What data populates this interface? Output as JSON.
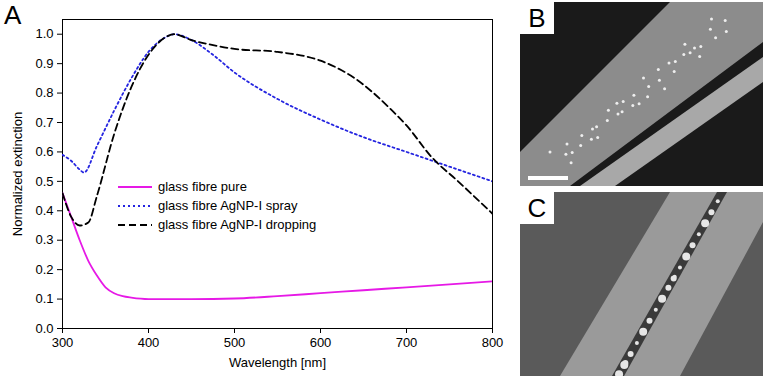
{
  "chart_data": {
    "type": "line",
    "panel_label": "A",
    "x_label": "Wavelength [nm]",
    "y_label": "Normalized extinction",
    "xlim": [
      300,
      800
    ],
    "xticks": [
      300,
      400,
      500,
      600,
      700,
      800
    ],
    "ylim": [
      0,
      1.05
    ],
    "yticks": [
      {
        "value": 0,
        "label": "0.0"
      },
      {
        "value": 0.1,
        "label": "0.1"
      },
      {
        "value": 0.2,
        "label": "0.2"
      },
      {
        "value": 0.3,
        "label": "0.3"
      },
      {
        "value": 0.4,
        "label": "0.4"
      },
      {
        "value": 0.5,
        "label": "0.5"
      },
      {
        "value": 0.6,
        "label": "0.6"
      },
      {
        "value": 0.7,
        "label": "0.7"
      },
      {
        "value": 0.8,
        "label": "0.8"
      },
      {
        "value": 0.9,
        "label": "0.9"
      },
      {
        "value": 1,
        "label": "1.0"
      }
    ],
    "grid": false,
    "legend": "center",
    "series": [
      {
        "name": "glass fibre pure",
        "color": "#e619e6",
        "line_style": "solid",
        "x": [
          300,
          310,
          320,
          330,
          340,
          350,
          360,
          370,
          380,
          400,
          450,
          500,
          550,
          600,
          650,
          700,
          750,
          800
        ],
        "values": [
          0.46,
          0.38,
          0.3,
          0.23,
          0.18,
          0.14,
          0.12,
          0.11,
          0.105,
          0.1,
          0.1,
          0.102,
          0.11,
          0.12,
          0.13,
          0.14,
          0.15,
          0.16
        ]
      },
      {
        "name": "glass fibre AgNP-I spray",
        "color": "#2424e0",
        "line_style": "dotted",
        "x": [
          300,
          310,
          320,
          325,
          340,
          360,
          380,
          400,
          420,
          430,
          450,
          475,
          500,
          550,
          600,
          650,
          700,
          750,
          800
        ],
        "values": [
          0.59,
          0.57,
          0.54,
          0.53,
          0.62,
          0.74,
          0.85,
          0.94,
          0.99,
          1.0,
          0.98,
          0.93,
          0.87,
          0.78,
          0.71,
          0.65,
          0.6,
          0.55,
          0.5
        ]
      },
      {
        "name": "glass fibre AgNP-I dropping",
        "color": "#000000",
        "line_style": "dashed",
        "x": [
          300,
          310,
          320,
          330,
          340,
          360,
          380,
          400,
          420,
          430,
          450,
          480,
          500,
          550,
          600,
          640,
          680,
          700,
          730,
          760,
          800
        ],
        "values": [
          0.46,
          0.38,
          0.35,
          0.36,
          0.45,
          0.66,
          0.82,
          0.93,
          0.99,
          1.0,
          0.98,
          0.96,
          0.95,
          0.94,
          0.91,
          0.85,
          0.75,
          0.69,
          0.58,
          0.5,
          0.39
        ]
      }
    ]
  },
  "images": [
    {
      "label": "B"
    },
    {
      "label": "C"
    }
  ]
}
